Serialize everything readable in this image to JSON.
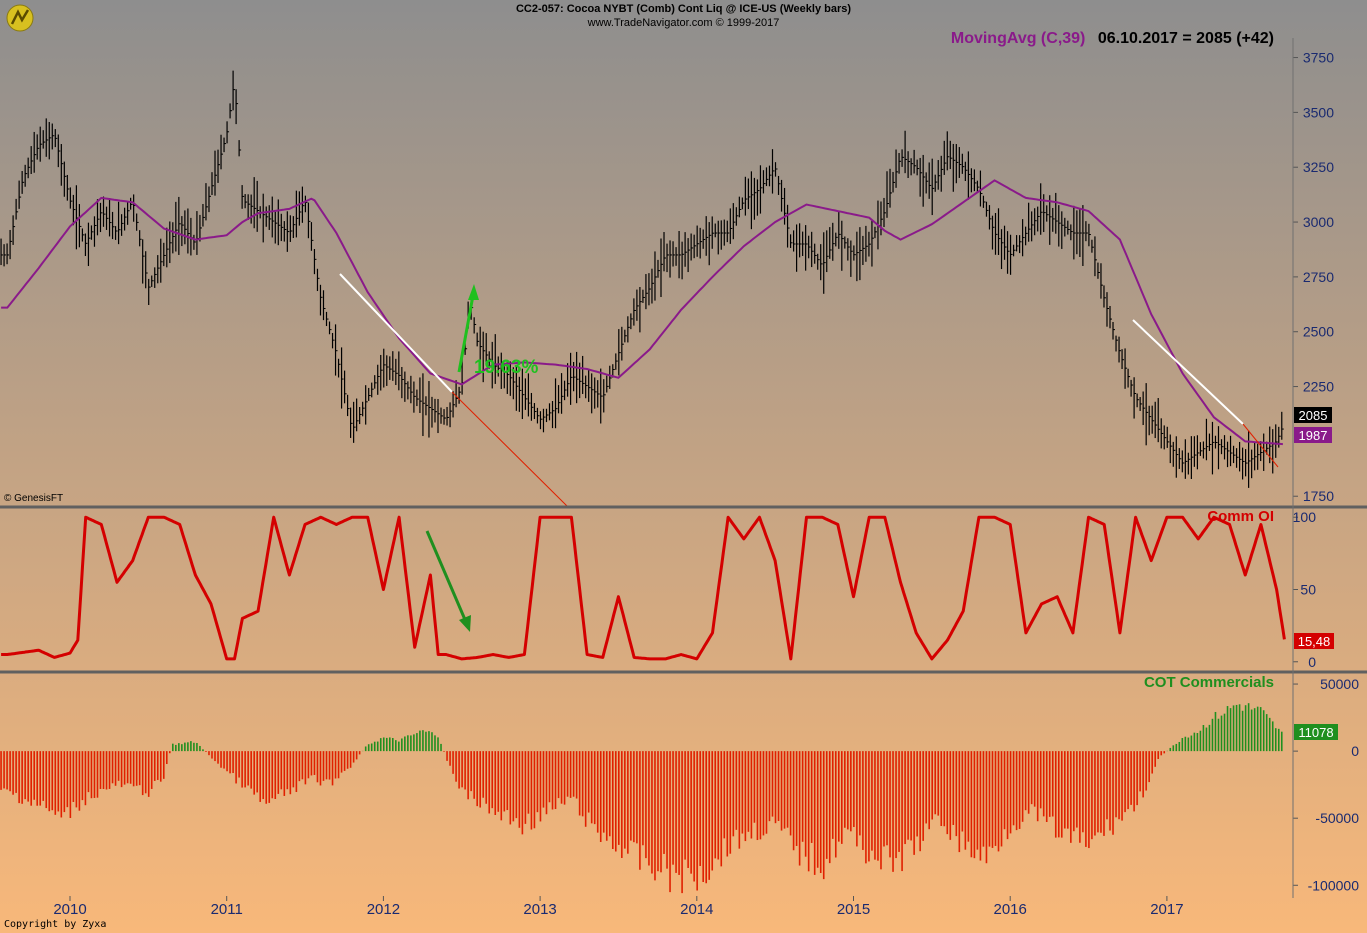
{
  "header": {
    "line1": "CC2-057:  Cocoa NYBT (Comb) Cont Liq @ ICE-US  (Weekly bars)",
    "line2": "www.TradeNavigator.com © 1999-2017",
    "ma_label": "MovingAvg (C,39)",
    "ma_reading": "06.10.2017 = 2085 (+42)",
    "watermark": "© GenesisFT",
    "copyright": "Copyright by Zyxa"
  },
  "colors": {
    "bg_top": "#8e8e8e",
    "bg_bottom": "#f8b87a",
    "price_bars": "#000000",
    "moving_avg": "#8a1a8a",
    "comm_oi": "#d40000",
    "cot_pos": "#1f8f1f",
    "cot_neg": "#e02000",
    "trend_white": "#ffffff",
    "trend_red": "#e02000",
    "arrow_green": "#1fc01f",
    "arrow_dark_green": "#1f8f1f"
  },
  "chart_data": [
    {
      "type": "line",
      "panel": "price",
      "title": "MovingAvg (C,39)",
      "x": [
        "2010",
        "2011",
        "2012",
        "2013",
        "2014",
        "2015",
        "2016",
        "2017"
      ],
      "y_ticks": [
        1750,
        2000,
        2250,
        2500,
        2750,
        3000,
        3250,
        3500,
        3750
      ],
      "y_tick_labels": [
        "1750",
        "",
        "2250",
        "2500",
        "2750",
        "3000",
        "3250",
        "3500",
        "3750"
      ],
      "ylim": [
        1710,
        3830
      ],
      "series": [
        {
          "name": "Price",
          "x": [
            2009.6,
            2009.7,
            2009.8,
            2009.9,
            2010.0,
            2010.1,
            2010.2,
            2010.3,
            2010.4,
            2010.5,
            2010.6,
            2010.7,
            2010.8,
            2010.9,
            2011.0,
            2011.05,
            2011.1,
            2011.2,
            2011.3,
            2011.4,
            2011.5,
            2011.6,
            2011.7,
            2011.8,
            2011.9,
            2012.0,
            2012.1,
            2012.2,
            2012.3,
            2012.4,
            2012.5,
            2012.55,
            2012.6,
            2012.7,
            2012.8,
            2012.9,
            2013.0,
            2013.1,
            2013.2,
            2013.3,
            2013.4,
            2013.5,
            2013.6,
            2013.7,
            2013.8,
            2013.9,
            2014.0,
            2014.1,
            2014.2,
            2014.3,
            2014.4,
            2014.5,
            2014.6,
            2014.7,
            2014.8,
            2014.9,
            2015.0,
            2015.1,
            2015.2,
            2015.3,
            2015.4,
            2015.5,
            2015.6,
            2015.7,
            2015.8,
            2015.9,
            2016.0,
            2016.1,
            2016.2,
            2016.3,
            2016.4,
            2016.5,
            2016.6,
            2016.7,
            2016.8,
            2016.9,
            2017.0,
            2017.1,
            2017.2,
            2017.3,
            2017.4,
            2017.5,
            2017.6,
            2017.7,
            2017.75
          ],
          "values": [
            2850,
            3200,
            3350,
            3400,
            3100,
            2900,
            3050,
            2950,
            3100,
            2700,
            2850,
            3000,
            2900,
            3150,
            3400,
            3650,
            3100,
            3050,
            3000,
            2950,
            3100,
            2650,
            2400,
            2050,
            2200,
            2350,
            2300,
            2200,
            2150,
            2100,
            2250,
            2650,
            2450,
            2350,
            2300,
            2200,
            2100,
            2150,
            2300,
            2250,
            2200,
            2400,
            2600,
            2700,
            2850,
            2850,
            2900,
            2950,
            2950,
            3100,
            3150,
            3250,
            2900,
            2900,
            2800,
            2950,
            2850,
            2900,
            3050,
            3300,
            3250,
            3150,
            3300,
            3250,
            3150,
            2950,
            2850,
            2950,
            3050,
            3000,
            2950,
            2950,
            2650,
            2400,
            2200,
            2100,
            2000,
            1900,
            1950,
            2000,
            1950,
            1900,
            1950,
            2000,
            2085
          ]
        },
        {
          "name": "MovingAvg (C,39)",
          "x": [
            2009.6,
            2009.8,
            2010.0,
            2010.2,
            2010.4,
            2010.6,
            2010.8,
            2011.0,
            2011.1,
            2011.2,
            2011.4,
            2011.55,
            2011.7,
            2011.9,
            2012.1,
            2012.3,
            2012.5,
            2012.7,
            2012.9,
            2013.1,
            2013.3,
            2013.5,
            2013.7,
            2013.9,
            2014.1,
            2014.3,
            2014.5,
            2014.7,
            2014.9,
            2015.1,
            2015.2,
            2015.3,
            2015.5,
            2015.7,
            2015.9,
            2016.1,
            2016.3,
            2016.5,
            2016.7,
            2016.9,
            2017.1,
            2017.3,
            2017.5,
            2017.75
          ],
          "values": [
            2610,
            2790,
            2980,
            3110,
            3090,
            2970,
            2920,
            2940,
            3000,
            3040,
            3060,
            3110,
            2950,
            2680,
            2470,
            2310,
            2260,
            2350,
            2360,
            2350,
            2330,
            2290,
            2420,
            2600,
            2750,
            2890,
            3000,
            3080,
            3050,
            3020,
            2960,
            2920,
            2990,
            3090,
            3190,
            3110,
            3090,
            3050,
            2920,
            2580,
            2310,
            2110,
            2000,
            1987
          ]
        }
      ],
      "annotations": [
        "19.63%"
      ],
      "last_price": "2085",
      "last_ma": "1987"
    },
    {
      "type": "line",
      "panel": "indicator",
      "title": "Comm OI",
      "y_ticks": [
        0,
        50,
        100
      ],
      "ylim": [
        -5,
        105
      ],
      "series": [
        {
          "name": "Comm OI",
          "x": [
            2009.6,
            2009.8,
            2009.9,
            2010.0,
            2010.05,
            2010.1,
            2010.2,
            2010.3,
            2010.4,
            2010.5,
            2010.6,
            2010.7,
            2010.8,
            2010.9,
            2011.0,
            2011.05,
            2011.1,
            2011.2,
            2011.3,
            2011.4,
            2011.5,
            2011.6,
            2011.7,
            2011.8,
            2011.9,
            2012.0,
            2012.1,
            2012.2,
            2012.3,
            2012.35,
            2012.4,
            2012.5,
            2012.6,
            2012.7,
            2012.8,
            2012.9,
            2013.0,
            2013.1,
            2013.2,
            2013.3,
            2013.4,
            2013.5,
            2013.6,
            2013.7,
            2013.8,
            2013.9,
            2014.0,
            2014.1,
            2014.2,
            2014.3,
            2014.4,
            2014.5,
            2014.6,
            2014.7,
            2014.8,
            2014.9,
            2015.0,
            2015.1,
            2015.2,
            2015.3,
            2015.4,
            2015.5,
            2015.6,
            2015.7,
            2015.8,
            2015.9,
            2016.0,
            2016.1,
            2016.2,
            2016.3,
            2016.4,
            2016.5,
            2016.6,
            2016.7,
            2016.8,
            2016.9,
            2017.0,
            2017.1,
            2017.2,
            2017.3,
            2017.4,
            2017.5,
            2017.6,
            2017.7,
            2017.75
          ],
          "values": [
            5,
            8,
            3,
            6,
            15,
            100,
            95,
            55,
            70,
            100,
            100,
            95,
            60,
            40,
            2,
            2,
            30,
            35,
            100,
            60,
            95,
            100,
            95,
            100,
            100,
            50,
            100,
            10,
            60,
            5,
            5,
            2,
            3,
            5,
            3,
            5,
            100,
            100,
            100,
            5,
            3,
            45,
            3,
            2,
            2,
            5,
            2,
            20,
            100,
            85,
            100,
            70,
            2,
            100,
            100,
            95,
            45,
            100,
            100,
            55,
            20,
            2,
            15,
            35,
            100,
            100,
            95,
            20,
            40,
            45,
            20,
            100,
            95,
            20,
            100,
            70,
            100,
            100,
            85,
            100,
            95,
            60,
            95,
            50,
            15.48
          ]
        }
      ],
      "last_value": "15,48"
    },
    {
      "type": "bar",
      "panel": "indicator",
      "title": "COT Commercials",
      "y_ticks": [
        -100000,
        -50000,
        0,
        50000
      ],
      "ylim": [
        -108000,
        56000
      ],
      "series": [
        {
          "name": "COT Commercials",
          "x": [
            2009.6,
            2009.8,
            2009.95,
            2010.1,
            2010.3,
            2010.5,
            2010.6,
            2010.65,
            2010.8,
            2010.95,
            2011.1,
            2011.25,
            2011.4,
            2011.55,
            2011.65,
            2011.8,
            2011.9,
            2012.0,
            2012.1,
            2012.25,
            2012.35,
            2012.4,
            2012.5,
            2012.7,
            2012.9,
            2013.05,
            2013.2,
            2013.35,
            2013.5,
            2013.7,
            2013.9,
            2014.05,
            2014.2,
            2014.35,
            2014.5,
            2014.65,
            2014.8,
            2014.95,
            2015.1,
            2015.25,
            2015.4,
            2015.55,
            2015.7,
            2015.85,
            2016.0,
            2016.15,
            2016.3,
            2016.5,
            2016.65,
            2016.8,
            2016.9,
            2016.95,
            2017.0,
            2017.1,
            2017.2,
            2017.3,
            2017.45,
            2017.6,
            2017.75
          ],
          "values": [
            -30000,
            -40000,
            -50000,
            -35000,
            -25000,
            -30000,
            -20000,
            5000,
            7000,
            -10000,
            -25000,
            -40000,
            -30000,
            -20000,
            -25000,
            -10000,
            5000,
            10000,
            8000,
            15000,
            12000,
            -5000,
            -30000,
            -45000,
            -55000,
            -45000,
            -35000,
            -60000,
            -70000,
            -85000,
            -95000,
            -90000,
            -70000,
            -60000,
            -55000,
            -75000,
            -85000,
            -60000,
            -75000,
            -85000,
            -70000,
            -50000,
            -70000,
            -80000,
            -55000,
            -45000,
            -60000,
            -70000,
            -55000,
            -40000,
            -20000,
            -5000,
            0,
            10000,
            15000,
            25000,
            35000,
            30000,
            11078
          ]
        }
      ],
      "last_value": "11078"
    }
  ]
}
